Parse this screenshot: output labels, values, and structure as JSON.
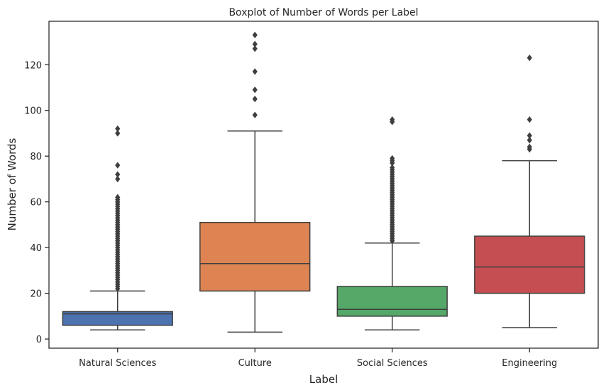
{
  "chart_data": {
    "type": "box",
    "title": "Boxplot of Number of Words per Label",
    "xlabel": "Label",
    "ylabel": "Number of Words",
    "ylim": [
      -4,
      139
    ],
    "yticks": [
      0,
      20,
      40,
      60,
      80,
      100,
      120
    ],
    "grid": false,
    "categories": [
      "Natural Sciences",
      "Culture",
      "Social Sciences",
      "Engineering"
    ],
    "colors": [
      "#4c72b0",
      "#dd8452",
      "#55a868",
      "#c44e52"
    ],
    "boxes": [
      {
        "label": "Natural Sciences",
        "whisker_low": 4,
        "q1": 6,
        "median": 11,
        "q3": 12,
        "whisker_high": 21,
        "outliers": [
          22,
          23,
          24,
          25,
          26,
          27,
          28,
          29,
          30,
          31,
          32,
          33,
          34,
          35,
          36,
          37,
          38,
          39,
          40,
          41,
          42,
          43,
          44,
          45,
          46,
          47,
          48,
          49,
          50,
          51,
          52,
          53,
          54,
          55,
          56,
          57,
          58,
          59,
          60,
          61,
          62,
          70,
          72,
          76,
          90,
          92
        ]
      },
      {
        "label": "Culture",
        "whisker_low": 3,
        "q1": 21,
        "median": 33,
        "q3": 51,
        "whisker_high": 91,
        "outliers": [
          98,
          105,
          109,
          117,
          127,
          129,
          133
        ]
      },
      {
        "label": "Social Sciences",
        "whisker_low": 4,
        "q1": 10,
        "median": 13,
        "q3": 23,
        "whisker_high": 42,
        "outliers": [
          43,
          44,
          45,
          46,
          47,
          48,
          49,
          50,
          51,
          52,
          53,
          54,
          55,
          56,
          57,
          58,
          59,
          60,
          61,
          62,
          63,
          64,
          65,
          66,
          67,
          68,
          69,
          70,
          71,
          72,
          73,
          74,
          75,
          77,
          78,
          79,
          95,
          96
        ]
      },
      {
        "label": "Engineering",
        "whisker_low": 5,
        "q1": 20,
        "median": 31.5,
        "q3": 45,
        "whisker_high": 78,
        "outliers": [
          83,
          84,
          87,
          89,
          96,
          123
        ]
      }
    ]
  }
}
